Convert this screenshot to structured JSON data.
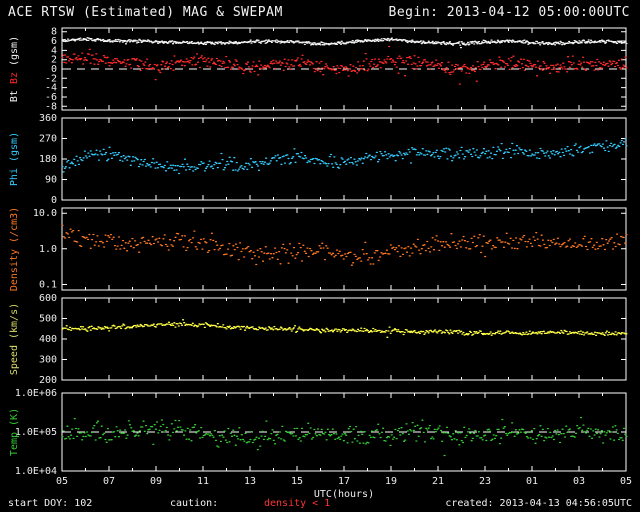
{
  "header": {
    "title": "ACE RTSW (Estimated) MAG & SWEPAM",
    "begin": "Begin: 2013-04-12 05:00:00UTC"
  },
  "footer": {
    "start": "start DOY: 102",
    "caution_label": "caution:",
    "caution_value": "density < 1",
    "caution_color": "#ff3333",
    "created": "created: 2013-04-13 04:56:05UTC"
  },
  "x_axis": {
    "min": 5,
    "max": 29,
    "xlabel": "UTC(hours)",
    "ticks": [
      {
        "v": 5,
        "label": "05"
      },
      {
        "v": 7,
        "label": "07"
      },
      {
        "v": 9,
        "label": "09"
      },
      {
        "v": 11,
        "label": "11"
      },
      {
        "v": 13,
        "label": "13"
      },
      {
        "v": 15,
        "label": "15"
      },
      {
        "v": 17,
        "label": "17"
      },
      {
        "v": 19,
        "label": "19"
      },
      {
        "v": 21,
        "label": "21"
      },
      {
        "v": 23,
        "label": "23"
      },
      {
        "v": 25,
        "label": "01"
      },
      {
        "v": 27,
        "label": "03"
      },
      {
        "v": 29,
        "label": "05"
      }
    ]
  },
  "chart_data": [
    {
      "type": "scatter",
      "name": "bt-bz-panel",
      "label_parts": [
        {
          "text": "Bt ",
          "color": "#f5f5f5"
        },
        {
          "text": "Bz ",
          "color": "#ff2a2a"
        },
        {
          "text": "(gsm)",
          "color": "#f5f5f5"
        }
      ],
      "scale": "linear",
      "ylim": [
        -8.8,
        8.8
      ],
      "yticks": [
        {
          "v": 8,
          "label": "8"
        },
        {
          "v": 6,
          "label": "6"
        },
        {
          "v": 4,
          "label": "4"
        },
        {
          "v": 2,
          "label": "2"
        },
        {
          "v": 0,
          "label": "0"
        },
        {
          "v": -2,
          "label": "-2"
        },
        {
          "v": -4,
          "label": "-4"
        },
        {
          "v": -6,
          "label": "-6"
        },
        {
          "v": -8,
          "label": "-8"
        }
      ],
      "dashed_at": 0,
      "series": [
        {
          "name": "Bt",
          "color": "#f2f2f2",
          "noise": 0.5,
          "n": 720,
          "seed": 101,
          "anchors": [
            6.2,
            6.4,
            6.0,
            6.1,
            5.9,
            5.7,
            5.5,
            5.6,
            5.8,
            6.0,
            5.7,
            5.4,
            5.6,
            6.1,
            6.3,
            5.9,
            5.6,
            5.4,
            5.7,
            6.0,
            5.7,
            5.5,
            5.8,
            5.9,
            5.7
          ]
        },
        {
          "name": "Bz",
          "color": "#ff2a2a",
          "noise": 2.0,
          "n": 600,
          "seed": 102,
          "anchors": [
            1.8,
            2.6,
            2.0,
            1.2,
            0.6,
            1.4,
            2.0,
            1.2,
            0.2,
            0.8,
            1.6,
            0.6,
            -0.4,
            0.8,
            1.8,
            1.4,
            0.4,
            -0.2,
            0.8,
            1.4,
            0.6,
            0.2,
            0.6,
            1.2,
            0.8
          ]
        }
      ]
    },
    {
      "type": "scatter",
      "name": "phi-panel",
      "label_parts": [
        {
          "text": "Phi (gsm)",
          "color": "#33ccff"
        }
      ],
      "scale": "linear",
      "ylim": [
        0,
        360
      ],
      "yticks": [
        {
          "v": 360,
          "label": "360"
        },
        {
          "v": 270,
          "label": "270"
        },
        {
          "v": 180,
          "label": "180"
        },
        {
          "v": 90,
          "label": "90"
        },
        {
          "v": 0,
          "label": "0"
        }
      ],
      "dashed_at": null,
      "series": [
        {
          "name": "Phi",
          "color": "#33ccff",
          "noise": 40,
          "n": 480,
          "seed": 103,
          "anchors": [
            150,
            190,
            205,
            175,
            155,
            140,
            150,
            160,
            150,
            180,
            190,
            170,
            160,
            185,
            200,
            215,
            200,
            210,
            205,
            215,
            195,
            210,
            225,
            235,
            255
          ]
        }
      ]
    },
    {
      "type": "scatter",
      "name": "density-panel",
      "label_parts": [
        {
          "text": "Density (/cm3)",
          "color": "#ff7722"
        }
      ],
      "scale": "log",
      "ylim": [
        0.07,
        14
      ],
      "yticks": [
        {
          "v": 10,
          "label": "10.0"
        },
        {
          "v": 1,
          "label": "1.0"
        },
        {
          "v": 0.1,
          "label": "0.1"
        }
      ],
      "dashed_at": null,
      "series": [
        {
          "name": "Density",
          "color": "#ff7722",
          "noise": 0.35,
          "n": 420,
          "seed": 104,
          "anchors": [
            2.4,
            2.0,
            1.7,
            1.5,
            1.6,
            1.8,
            1.4,
            1.1,
            0.9,
            0.8,
            0.75,
            0.9,
            0.65,
            0.6,
            0.8,
            1.0,
            1.3,
            1.5,
            1.2,
            1.5,
            1.7,
            1.4,
            1.3,
            1.5,
            1.6
          ]
        }
      ]
    },
    {
      "type": "scatter",
      "name": "speed-panel",
      "label_parts": [
        {
          "text": "Speed (km/s)",
          "color": "#dddd66"
        }
      ],
      "scale": "linear",
      "ylim": [
        200,
        600
      ],
      "yticks": [
        {
          "v": 600,
          "label": "600"
        },
        {
          "v": 500,
          "label": "500"
        },
        {
          "v": 400,
          "label": "400"
        },
        {
          "v": 300,
          "label": "300"
        },
        {
          "v": 200,
          "label": "200"
        }
      ],
      "dashed_at": null,
      "series": [
        {
          "name": "Speed",
          "color": "#ffff44",
          "noise": 16,
          "n": 520,
          "seed": 105,
          "anchors": [
            450,
            452,
            456,
            462,
            468,
            472,
            468,
            460,
            454,
            450,
            446,
            444,
            442,
            440,
            438,
            436,
            434,
            431,
            429,
            428,
            430,
            432,
            429,
            427,
            425
          ]
        }
      ]
    },
    {
      "type": "scatter",
      "name": "temp-panel",
      "label_parts": [
        {
          "text": "Temp (K)",
          "color": "#33cc33"
        }
      ],
      "scale": "log",
      "ylim": [
        10000,
        1000000
      ],
      "yticks": [
        {
          "v": 1000000,
          "label": "1.0E+06"
        },
        {
          "v": 100000,
          "label": "1.0E+05"
        },
        {
          "v": 10000,
          "label": "1.0E+04"
        }
      ],
      "dashed_at": 100000,
      "series": [
        {
          "name": "Temp",
          "color": "#33cc33",
          "noise": 0.35,
          "n": 460,
          "seed": 106,
          "anchors": [
            100000,
            100000,
            90000,
            110000,
            130000,
            110000,
            90000,
            70000,
            65000,
            80000,
            100000,
            90000,
            80000,
            70000,
            90000,
            110000,
            100000,
            80000,
            90000,
            100000,
            80000,
            90000,
            100000,
            90000,
            90000
          ]
        }
      ]
    }
  ]
}
